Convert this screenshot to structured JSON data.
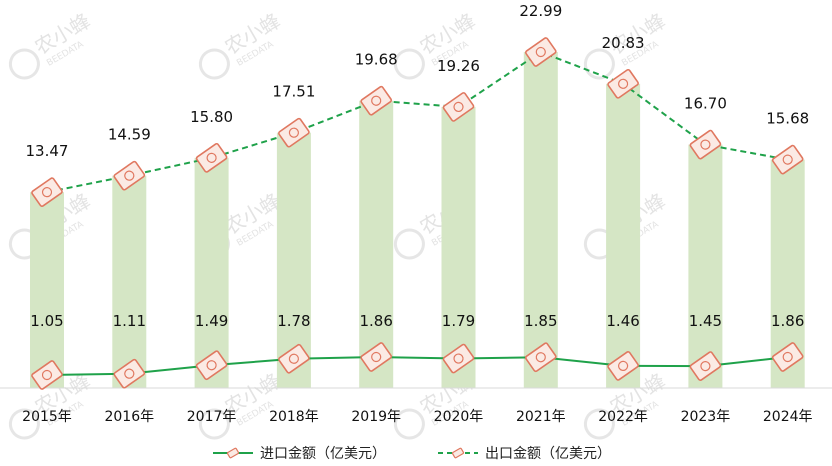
{
  "watermark": {
    "text": "农小蜂",
    "subtext": "BEEDATA"
  },
  "chart_data": {
    "type": "bar+line",
    "categories": [
      "2015年",
      "2016年",
      "2017年",
      "2018年",
      "2019年",
      "2020年",
      "2021年",
      "2022年",
      "2023年",
      "2024年"
    ],
    "bar_values": [
      13.47,
      14.59,
      15.8,
      17.51,
      19.68,
      19.26,
      22.99,
      20.83,
      16.7,
      15.68
    ],
    "series": [
      {
        "name": "进口金额（亿美元）",
        "style": "solid",
        "values": [
          1.05,
          1.11,
          1.49,
          1.78,
          1.86,
          1.79,
          1.85,
          1.46,
          1.45,
          1.86
        ]
      },
      {
        "name": "出口金额（亿美元）",
        "style": "dashed",
        "values": [
          13.47,
          14.59,
          15.8,
          17.51,
          19.68,
          19.26,
          22.99,
          20.83,
          16.7,
          15.68
        ]
      }
    ],
    "ylim": [
      0,
      24
    ],
    "grid": false,
    "legend_position": "bottom",
    "colors": {
      "bar": "#d5e6c5",
      "line": "#1fa24a",
      "marker_stroke": "#e07860",
      "marker_fill": "#fbeae4"
    }
  }
}
